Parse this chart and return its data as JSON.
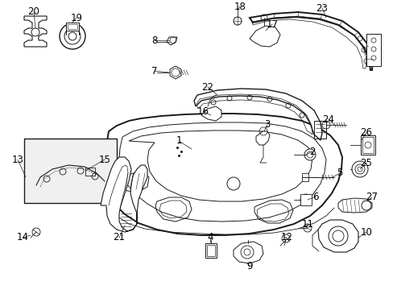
{
  "background_color": "#ffffff",
  "line_color": "#1a1a1a",
  "text_color": "#000000",
  "font_size": 8.5,
  "label_font_size": 8.5,
  "fig_width": 4.89,
  "fig_height": 3.6,
  "dpi": 100
}
